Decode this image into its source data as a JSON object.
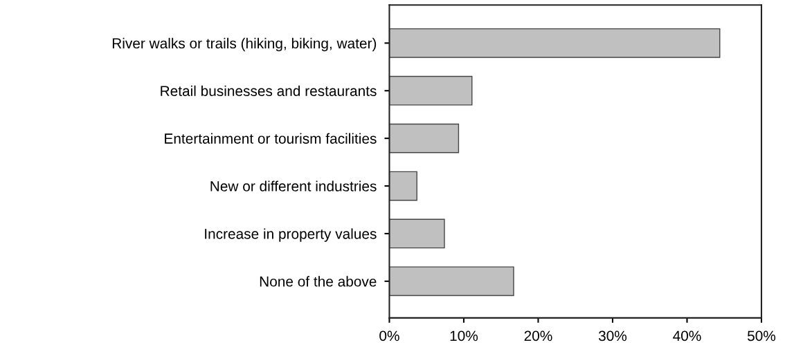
{
  "chart_data": {
    "type": "bar",
    "orientation": "horizontal",
    "categories": [
      "River walks or trails (hiking, biking, water)",
      "Retail businesses and restaurants",
      "Entertainment or tourism facilities",
      "New or different industries",
      "Increase in property values",
      "None of the above"
    ],
    "values": [
      44.4,
      11.1,
      9.3,
      3.7,
      7.4,
      16.7
    ],
    "color": "#c0c0c0",
    "xlim": [
      0,
      50
    ],
    "xticks": [
      {
        "value": 0,
        "label": "0%"
      },
      {
        "value": 10,
        "label": "10%"
      },
      {
        "value": 20,
        "label": "20%"
      },
      {
        "value": 30,
        "label": "30%"
      },
      {
        "value": 40,
        "label": "40%"
      },
      {
        "value": 50,
        "label": "50%"
      }
    ],
    "grid": false,
    "legend": false
  }
}
